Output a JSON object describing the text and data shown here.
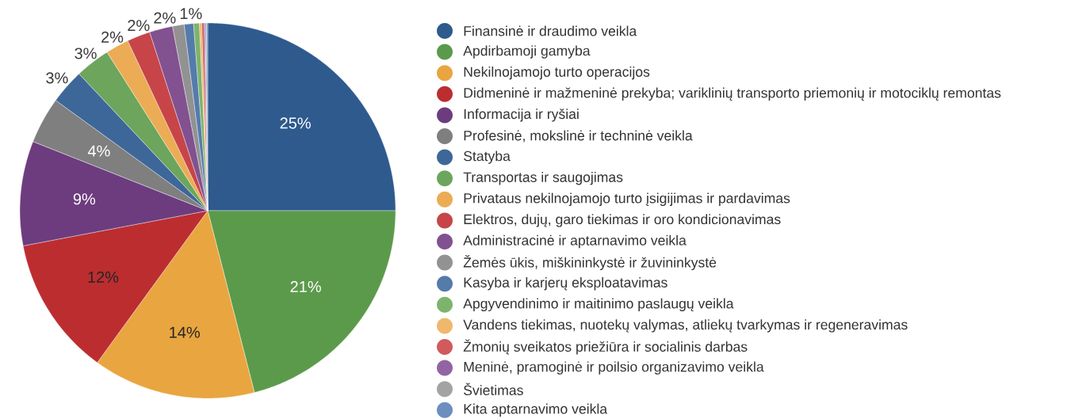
{
  "chart_data": {
    "type": "pie",
    "categories": [
      "Finansinė ir draudimo veikla",
      "Apdirbamoji gamyba",
      "Nekilnojamojo turto operacijos",
      "Didmeninė ir mažmeninė prekyba; variklinių transporto priemonių ir motociklų remontas",
      "Informacija ir ryšiai",
      "Profesinė, mokslinė ir techninė veikla",
      "Statyba",
      "Transportas ir saugojimas",
      "Privataus nekilnojamojo turto įsigijimas ir pardavimas",
      "Elektros, dujų, garo tiekimas ir oro kondicionavimas",
      "Administracinė ir aptarnavimo veikla",
      "Žemės ūkis, miškininkystė ir žuvininkystė",
      "Kasyba ir karjerų eksploatavimas",
      "Apgyvendinimo ir maitinimo paslaugų veikla",
      "Vandens tiekimas, nuotekų valymas, atliekų tvarkymas ir regeneravimas",
      "Žmonių sveikatos priežiūra ir socialinis darbas",
      "Meninė, pramoginė ir poilsio organizavimo veikla",
      "Švietimas",
      "Kita aptarnavimo veikla"
    ],
    "values": [
      25,
      21,
      14,
      12,
      9,
      4,
      3,
      3,
      2,
      2,
      2,
      1,
      0.8,
      0.5,
      0.2,
      0.2,
      0.1,
      0.1,
      0.1
    ],
    "colors": [
      "#2e5a8e",
      "#5b9a4b",
      "#e9a53f",
      "#bc2d30",
      "#6d3c7e",
      "#7f7f7f",
      "#3e6799",
      "#6ca55b",
      "#ebac55",
      "#c74548",
      "#815190",
      "#929292",
      "#557bab",
      "#7db46c",
      "#efb86c",
      "#d15a5c",
      "#9265a2",
      "#a3a3a3",
      "#6c8fbf"
    ],
    "value_labels": [
      "25%",
      "21%",
      "14%",
      "12%",
      "9%",
      "4%",
      "3%",
      "3%",
      "2%",
      "2%",
      "2%",
      "1%",
      null,
      null,
      null,
      null,
      null,
      null,
      null
    ],
    "legend": "right"
  }
}
